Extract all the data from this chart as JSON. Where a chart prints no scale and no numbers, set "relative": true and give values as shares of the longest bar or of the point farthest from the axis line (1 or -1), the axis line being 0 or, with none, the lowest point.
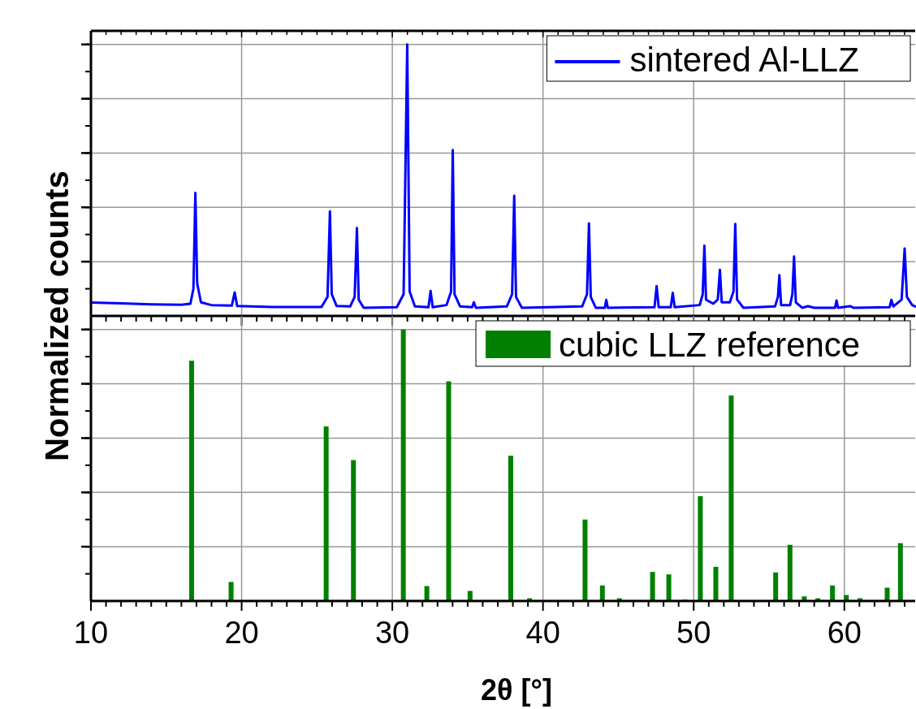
{
  "chart_data": [
    {
      "type": "line",
      "relative": true,
      "xlim": [
        10,
        64.7
      ],
      "xticks": [
        10,
        20,
        30,
        40,
        50,
        60
      ],
      "grid": true,
      "legend": "top right",
      "tick_labels": false,
      "series": [
        {
          "name": "sintered Al-LLZ",
          "color": "#0000ff",
          "x": [
            10,
            12,
            14,
            16,
            16.6,
            16.8,
            16.93,
            17.05,
            17.3,
            18,
            19.35,
            19.54,
            19.7,
            22,
            25.3,
            25.7,
            25.86,
            25.98,
            26.3,
            27.2,
            27.5,
            27.65,
            27.77,
            28.1,
            30.3,
            30.75,
            30.99,
            31.15,
            31.5,
            32.4,
            32.54,
            32.68,
            33.6,
            33.9,
            34.01,
            34.13,
            34.5,
            35.3,
            35.41,
            35.55,
            37.6,
            37.95,
            38.09,
            38.21,
            38.6,
            42.6,
            42.92,
            43.05,
            43.17,
            43.5,
            44.1,
            44.2,
            44.3,
            47.4,
            47.54,
            47.68,
            48.48,
            48.61,
            48.74,
            50.4,
            50.6,
            50.71,
            50.82,
            51.3,
            51.6,
            51.74,
            51.86,
            52.4,
            52.64,
            52.76,
            52.88,
            53.3,
            55.4,
            55.59,
            55.69,
            55.8,
            56.4,
            56.55,
            56.66,
            56.78,
            57.2,
            57.59,
            58,
            59.38,
            59.48,
            59.58,
            60.38,
            60.6,
            63,
            63.12,
            63.25,
            63.8,
            64,
            64.15,
            64.5,
            64.7
          ],
          "values": [
            0.049,
            0.046,
            0.043,
            0.041,
            0.045,
            0.1,
            0.453,
            0.12,
            0.05,
            0.04,
            0.038,
            0.087,
            0.037,
            0.033,
            0.033,
            0.07,
            0.385,
            0.08,
            0.037,
            0.035,
            0.07,
            0.324,
            0.06,
            0.03,
            0.032,
            0.08,
            1,
            0.09,
            0.035,
            0.032,
            0.092,
            0.032,
            0.04,
            0.09,
            0.611,
            0.08,
            0.035,
            0.032,
            0.05,
            0.03,
            0.035,
            0.08,
            0.443,
            0.07,
            0.03,
            0.035,
            0.08,
            0.341,
            0.07,
            0.03,
            0.03,
            0.059,
            0.03,
            0.032,
            0.11,
            0.032,
            0.032,
            0.085,
            0.032,
            0.04,
            0.08,
            0.259,
            0.06,
            0.045,
            0.06,
            0.17,
            0.05,
            0.05,
            0.09,
            0.339,
            0.06,
            0.03,
            0.035,
            0.07,
            0.15,
            0.04,
            0.04,
            0.08,
            0.219,
            0.05,
            0.03,
            0.036,
            0.03,
            0.03,
            0.057,
            0.03,
            0.036,
            0.03,
            0.032,
            0.059,
            0.035,
            0.06,
            0.248,
            0.07,
            0.04,
            0.035
          ]
        }
      ]
    },
    {
      "type": "bar",
      "relative": true,
      "xlim": [
        10,
        64.7
      ],
      "xticks": [
        10,
        20,
        30,
        40,
        50,
        60
      ],
      "grid": true,
      "legend": "top right",
      "tick_labels": "x",
      "xlabel": "2θ [°]",
      "ylabel": "Normalized counts",
      "x": [
        16.68,
        19.3,
        25.61,
        27.42,
        30.73,
        32.29,
        33.74,
        35.16,
        37.86,
        39.11,
        42.79,
        43.94,
        45.07,
        47.27,
        48.35,
        49.42,
        50.44,
        51.47,
        52.49,
        55.44,
        56.39,
        57.34,
        58.24,
        59.21,
        60.13,
        61.04,
        62.84,
        63.72
      ],
      "series": [
        {
          "name": "cubic LLZ reference",
          "color": "#008000",
          "values": [
            0.885,
            0.07,
            0.643,
            0.519,
            1,
            0.055,
            0.809,
            0.037,
            0.535,
            0.01,
            0.3,
            0.057,
            0.01,
            0.107,
            0.098,
            0.005,
            0.386,
            0.126,
            0.757,
            0.105,
            0.207,
            0.017,
            0.01,
            0.057,
            0.022,
            0.01,
            0.049,
            0.213
          ]
        }
      ]
    }
  ]
}
